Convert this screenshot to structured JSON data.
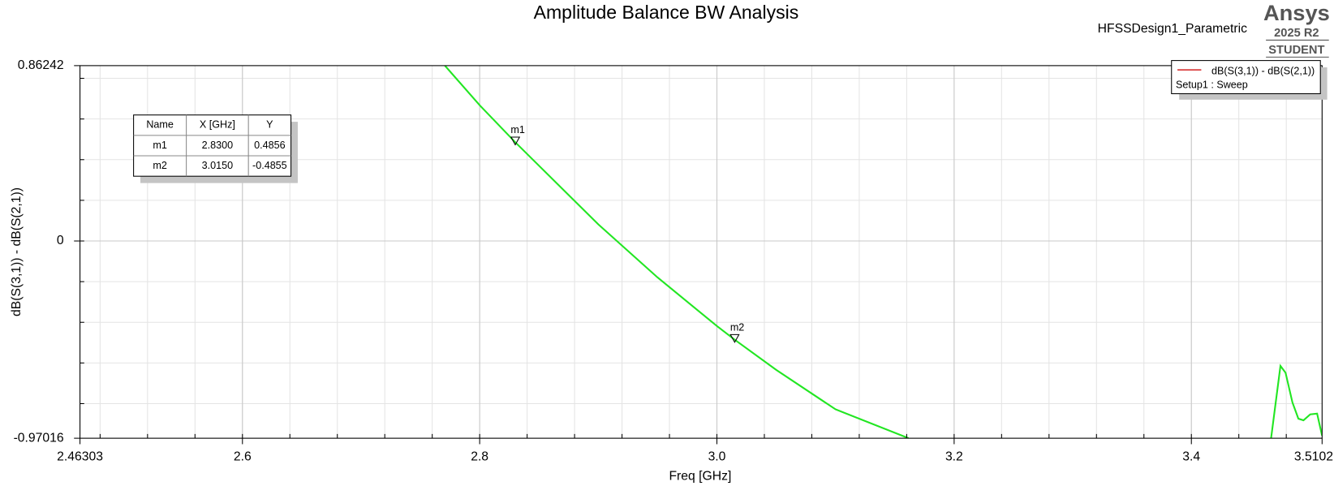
{
  "chart_data": {
    "type": "line",
    "title": "Amplitude Balance BW Analysis",
    "design_name": "HFSSDesign1_Parametric",
    "logo": {
      "brand": "Ansys",
      "version": "2025 R2",
      "edition": "STUDENT"
    },
    "x_label": "Freq [GHz]",
    "y_label": "dB(S(3,1)) - dB(S(2,1))",
    "xlim": [
      2.46303,
      3.5102
    ],
    "ylim": [
      -0.97016,
      0.86242
    ],
    "xticks": [
      2.46303,
      2.6,
      2.8,
      {
        "value": 3,
        "label": "3.0"
      },
      3.2,
      3.4,
      3.5102
    ],
    "yticks": [
      0.86242,
      0,
      -0.97016
    ],
    "xminor": 0.04,
    "yminor": 0.2,
    "grid": true,
    "x": [
      2.7707,
      2.8,
      2.83,
      2.9,
      2.95,
      3.0,
      3.015,
      3.05,
      3.1,
      3.1616,
      null,
      3.4672,
      3.4751,
      3.4794,
      3.4852,
      3.4902,
      3.4945,
      3.5002,
      3.506,
      3.5102
    ],
    "series": [
      {
        "name": "dB(S(3,1)) - dB(S(2,1))",
        "color": "#22e622",
        "legend_color": "#d42020",
        "values": [
          0.86242,
          0.6678,
          0.4856,
          0.0818,
          -0.1795,
          -0.4183,
          -0.4855,
          -0.634,
          -0.828,
          -0.97016,
          null,
          -0.97016,
          -0.6145,
          -0.648,
          -0.794,
          -0.874,
          -0.882,
          -0.853,
          -0.849,
          -0.958
        ]
      }
    ],
    "legend_subtitle": "Setup1 : Sweep",
    "legend_position": "upper right",
    "marker_table": {
      "columns": [
        "Name",
        "X [GHz]",
        "Y"
      ]
    },
    "markers": [
      {
        "name": "m1",
        "x": 2.83,
        "x_label": "2.8300",
        "y": 0.4856
      },
      {
        "name": "m2",
        "x": 3.015,
        "x_label": "3.0150",
        "y": -0.4855
      }
    ]
  }
}
